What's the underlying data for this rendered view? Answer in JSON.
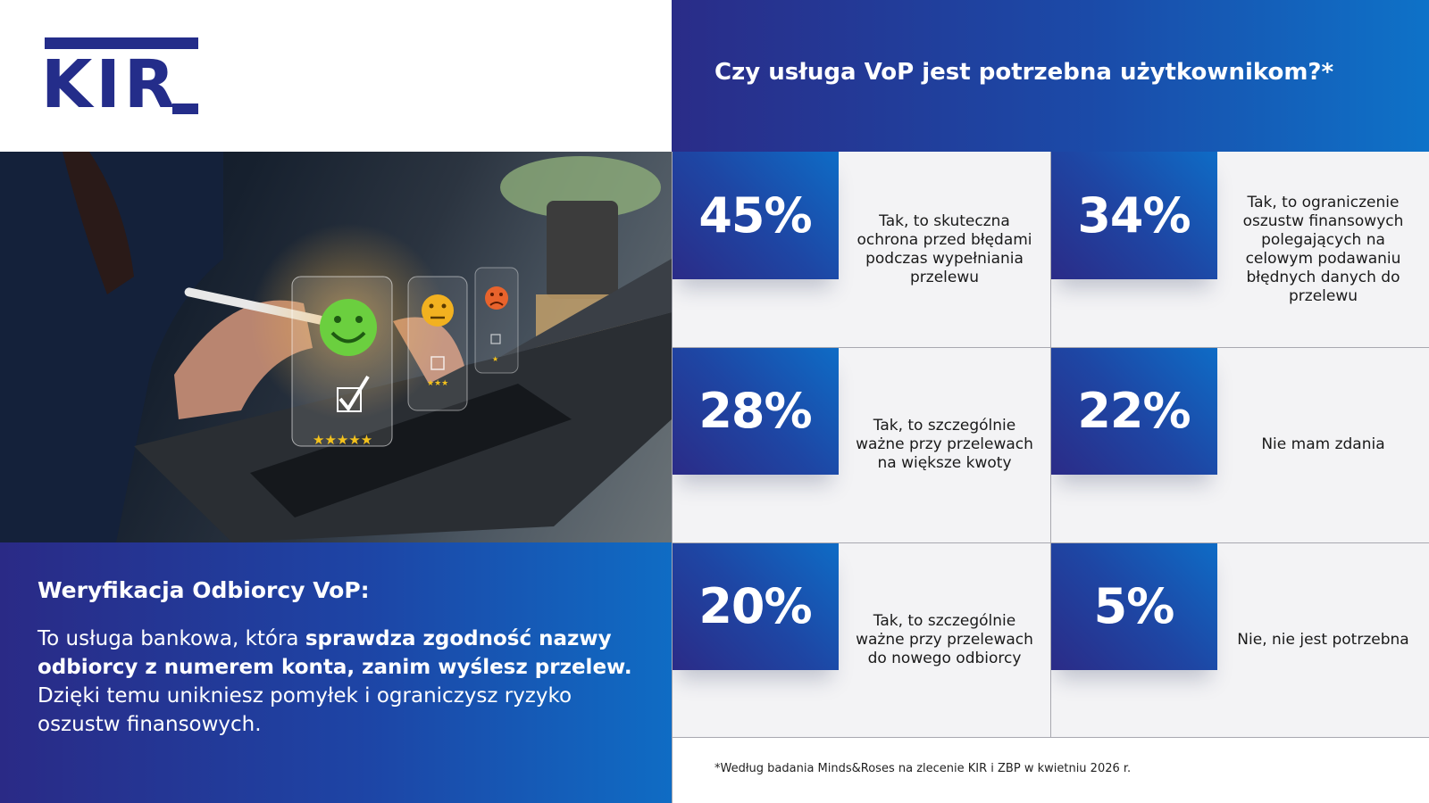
{
  "logo": {
    "text": "KIR"
  },
  "header": {
    "question": "Czy usługa VoP jest potrzebna użytkownikom?*"
  },
  "description": {
    "title": "Weryfikacja Odbiorcy VoP:",
    "intro": "To usługa bankowa, która ",
    "bold": "sprawdza zgodność nazwy odbiorcy z numerem konta, zanim wyślesz przelew.",
    "outro": " Dzięki temu unikniesz pomyłek i ograniczysz ryzyko oszustw finansowych."
  },
  "stats": [
    {
      "percent": "45%",
      "answer": "Tak, to skuteczna ochrona przed błędami podczas wypełniania przelewu",
      "value": 45
    },
    {
      "percent": "34%",
      "answer": "Tak, to ograniczenie oszustw finansowych polegających na celowym podawaniu błędnych danych do przelewu",
      "value": 34
    },
    {
      "percent": "28%",
      "answer": "Tak, to szczególnie ważne przy przelewach na większe kwoty",
      "value": 28
    },
    {
      "percent": "22%",
      "answer": "Nie mam zdania",
      "value": 22
    },
    {
      "percent": "20%",
      "answer": "Tak, to szczególnie ważne przy przelewach do nowego odbiorcy",
      "value": 20
    },
    {
      "percent": "5%",
      "answer": "Nie, nie jest potrzebna",
      "value": 5
    }
  ],
  "footnote": "*Według badania Minds&Roses na zlecenie KIR i ZBP w kwietniu 2026 r.",
  "colors": {
    "brand_navy": "#242d8a",
    "gradient_start": "#2a2a86",
    "gradient_end": "#0e6cc6",
    "cell_bg": "#f3f3f5"
  }
}
